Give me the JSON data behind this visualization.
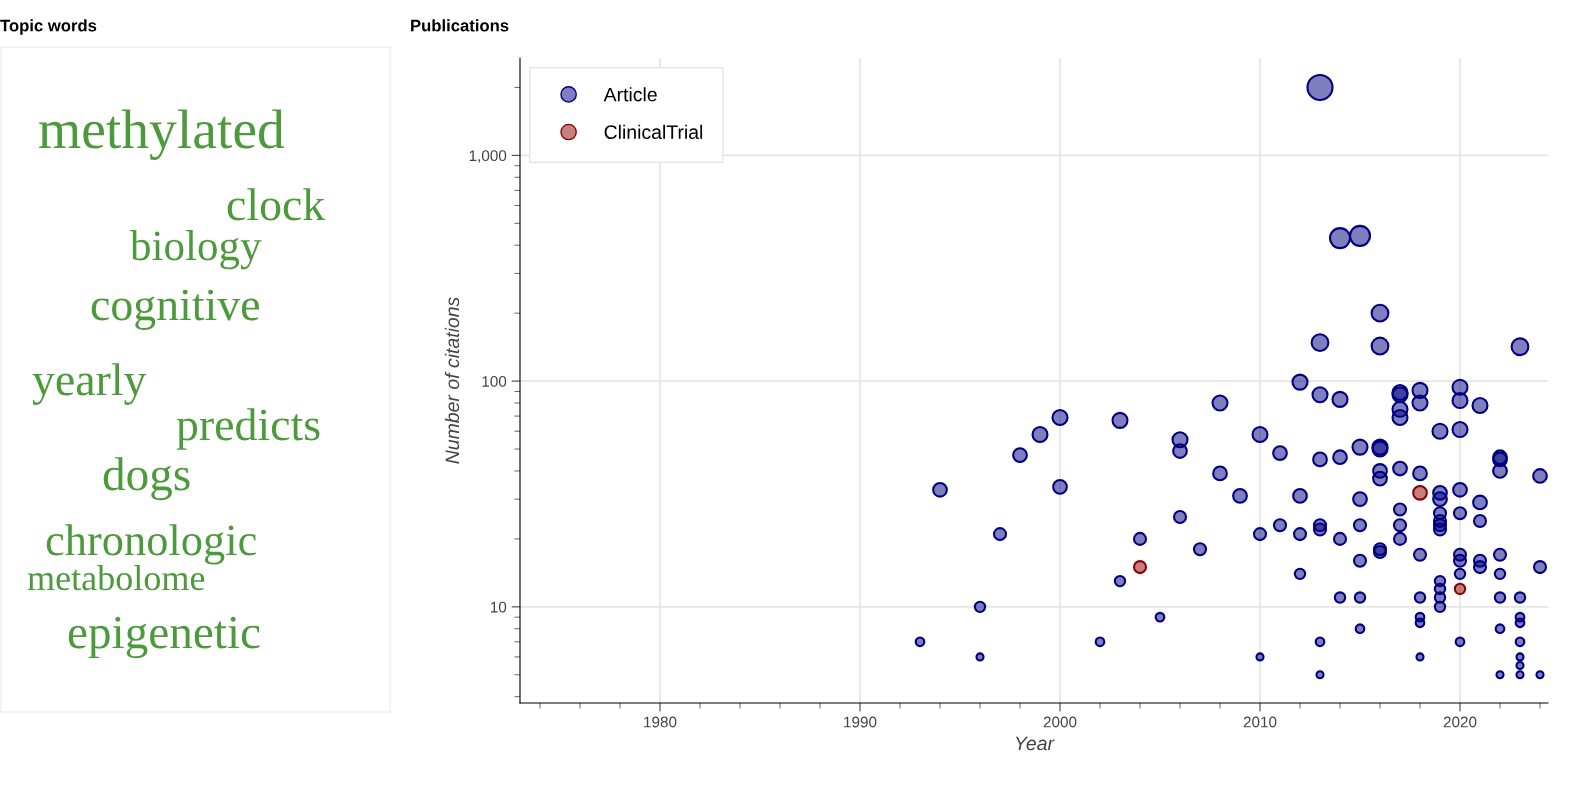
{
  "chart_data": [
    {
      "type": "other",
      "title": "Topic words",
      "color": "#4c9a3c",
      "annotations": [
        "methylated",
        "clock",
        "biology",
        "cognitive",
        "yearly",
        "predicts",
        "dogs",
        "chronologic",
        "metabolome",
        "epigenetic"
      ]
    },
    {
      "type": "bubble",
      "title": "Publications",
      "xlabel": "Year",
      "ylabel": "Number of citations",
      "log": true,
      "xlim": [
        1973,
        2024.4
      ],
      "ylim": [
        3.75,
        2700
      ],
      "xticks": [
        1980,
        1990,
        2000,
        2010,
        2020
      ],
      "yticks": [
        {
          "value": 10,
          "label": "10"
        },
        {
          "value": 100,
          "label": "100"
        },
        {
          "value": 1000,
          "label": "1,000"
        }
      ],
      "grid": true,
      "legend": "top left",
      "marker": "circle",
      "series": [
        {
          "name": "Article",
          "color": "#000080",
          "x": [
            1993,
            1994,
            1996,
            1996,
            1997,
            1998,
            1999,
            2000,
            2000,
            2002,
            2003,
            2003,
            2004,
            2005,
            2006,
            2006,
            2006,
            2007,
            2008,
            2008,
            2009,
            2010,
            2010,
            2010,
            2011,
            2011,
            2012,
            2012,
            2012,
            2012,
            2013,
            2013,
            2013,
            2013,
            2013,
            2013,
            2013,
            2013,
            2014,
            2014,
            2014,
            2014,
            2014,
            2015,
            2015,
            2015,
            2015,
            2015,
            2015,
            2015,
            2016,
            2016,
            2016,
            2016,
            2016,
            2016,
            2016,
            2016,
            2017,
            2017,
            2017,
            2017,
            2017,
            2017,
            2017,
            2017,
            2018,
            2018,
            2018,
            2018,
            2018,
            2018,
            2018,
            2018,
            2019,
            2019,
            2019,
            2019,
            2019,
            2019,
            2019,
            2019,
            2019,
            2019,
            2019,
            2020,
            2020,
            2020,
            2020,
            2020,
            2020,
            2020,
            2020,
            2020,
            2021,
            2021,
            2021,
            2021,
            2021,
            2022,
            2022,
            2022,
            2022,
            2022,
            2022,
            2022,
            2022,
            2023,
            2023,
            2023,
            2023,
            2023,
            2023,
            2023,
            2023,
            2024,
            2024,
            2024
          ],
          "values": [
            7,
            33,
            10,
            6,
            21,
            47,
            58,
            69,
            34,
            7,
            67,
            13,
            20,
            9,
            55,
            49,
            25,
            18,
            80,
            39,
            31,
            58,
            21,
            6,
            48,
            23,
            99,
            31,
            21,
            14,
            2000,
            148,
            87,
            45,
            23,
            22,
            7,
            5,
            430,
            83,
            46,
            20,
            11,
            440,
            51,
            30,
            23,
            16,
            11,
            8,
            200,
            143,
            51,
            50,
            40,
            37,
            18,
            17.5,
            89,
            87,
            75,
            69,
            41,
            27,
            23,
            20,
            91,
            80,
            39,
            17,
            11,
            9,
            8.5,
            6,
            60,
            32,
            30,
            26,
            24,
            23,
            22,
            13,
            12,
            11,
            10,
            94,
            82,
            61,
            33,
            26,
            17,
            16,
            14,
            7,
            78,
            29,
            24,
            16,
            15,
            46,
            45,
            40,
            17,
            14,
            11,
            8,
            5,
            142,
            11,
            9,
            8.5,
            7,
            6,
            5.5,
            5,
            38,
            15,
            5
          ],
          "sizes": [
            0.12,
            0.3,
            0.17,
            0.08,
            0.23,
            0.3,
            0.36,
            0.36,
            0.3,
            0.12,
            0.36,
            0.17,
            0.23,
            0.12,
            0.36,
            0.3,
            0.23,
            0.23,
            0.36,
            0.3,
            0.3,
            0.36,
            0.23,
            0.08,
            0.3,
            0.23,
            0.36,
            0.3,
            0.23,
            0.17,
            1.0,
            0.45,
            0.36,
            0.3,
            0.23,
            0.23,
            0.12,
            0.08,
            0.64,
            0.36,
            0.3,
            0.23,
            0.17,
            0.64,
            0.36,
            0.3,
            0.23,
            0.23,
            0.17,
            0.12,
            0.45,
            0.45,
            0.36,
            0.36,
            0.3,
            0.3,
            0.23,
            0.23,
            0.36,
            0.36,
            0.36,
            0.36,
            0.3,
            0.23,
            0.23,
            0.23,
            0.36,
            0.36,
            0.3,
            0.23,
            0.17,
            0.12,
            0.12,
            0.08,
            0.36,
            0.3,
            0.3,
            0.23,
            0.23,
            0.23,
            0.23,
            0.17,
            0.17,
            0.17,
            0.17,
            0.36,
            0.36,
            0.36,
            0.3,
            0.23,
            0.23,
            0.23,
            0.17,
            0.12,
            0.36,
            0.3,
            0.23,
            0.23,
            0.23,
            0.3,
            0.3,
            0.3,
            0.23,
            0.17,
            0.17,
            0.12,
            0.08,
            0.45,
            0.17,
            0.12,
            0.12,
            0.12,
            0.08,
            0.08,
            0.08,
            0.3,
            0.23,
            0.08
          ]
        },
        {
          "name": "ClinicalTrial",
          "color": "#8b0000",
          "x": [
            2004,
            2018,
            2020
          ],
          "values": [
            15,
            32,
            12
          ],
          "sizes": [
            0.23,
            0.3,
            0.17
          ]
        }
      ]
    }
  ]
}
